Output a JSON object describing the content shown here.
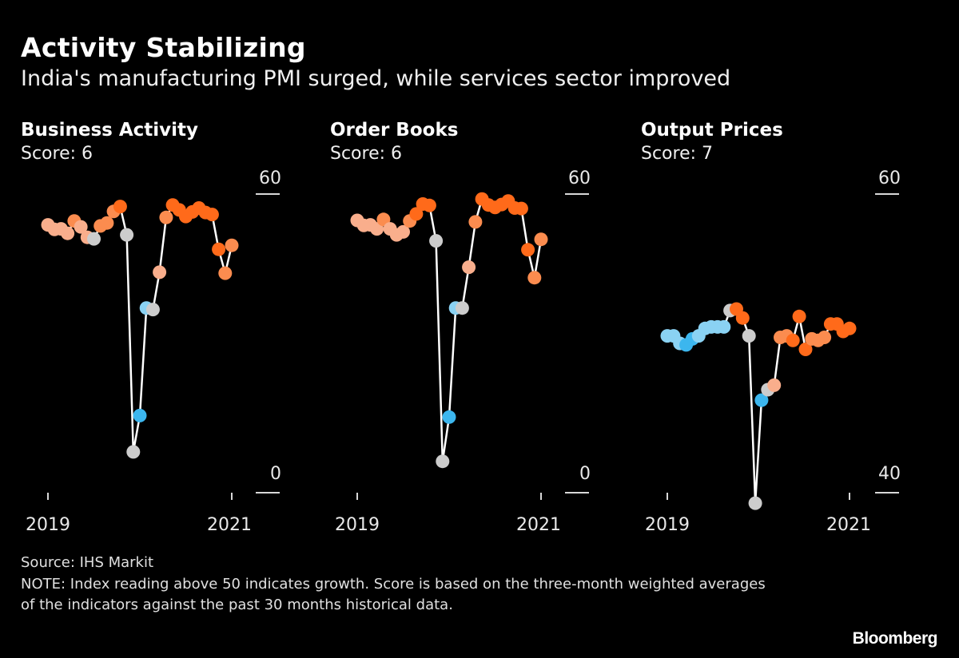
{
  "header": {
    "title": "Activity Stabilizing",
    "subtitle": "India's manufacturing PMI surged, while services sector improved"
  },
  "footer": {
    "source": "Source: IHS Markit",
    "note": "NOTE: Index reading above 50 indicates growth. Score is based on the three-month weighted averages of the indicators against the past 30 months historical data.",
    "brand": "Bloomberg"
  },
  "colors": {
    "background": "#000000",
    "line": "#ffffff",
    "neutral": "#cccccc",
    "light_orange": "#f9ae8c",
    "mid_orange": "#fb8c4f",
    "orange": "#ff6a1a",
    "light_blue": "#8ad2f3",
    "blue": "#3cb6ee"
  },
  "panels": [
    {
      "title": "Business Activity",
      "score": "Score: 6"
    },
    {
      "title": "Order Books",
      "score": "Score: 6"
    },
    {
      "title": "Output Prices",
      "score": "Score: 7"
    }
  ],
  "chart_data": [
    {
      "type": "line",
      "title": "Business Activity",
      "subtitle": "Score: 6",
      "x_ticks": [
        "2019",
        "2021"
      ],
      "ylim": [
        0,
        60
      ],
      "y_ticks": [
        "0",
        "60"
      ],
      "color_key": [
        "neutral",
        "light_orange",
        "mid_orange",
        "orange",
        "light_blue",
        "blue"
      ],
      "series": [
        {
          "name": "Business Activity",
          "values": [
            53.8,
            52.9,
            53.0,
            52.1,
            54.6,
            53.4,
            51.3,
            51.0,
            53.6,
            54.2,
            56.5,
            57.5,
            51.8,
            8.2,
            15.5,
            37.1,
            36.8,
            44.3,
            55.3,
            57.8,
            56.8,
            55.5,
            56.4,
            57.2,
            56.3,
            55.9,
            48.9,
            44.1,
            49.7
          ],
          "colors": [
            "light_orange",
            "light_orange",
            "light_orange",
            "light_orange",
            "mid_orange",
            "light_orange",
            "light_orange",
            "neutral",
            "mid_orange",
            "mid_orange",
            "mid_orange",
            "orange",
            "neutral",
            "neutral",
            "blue",
            "light_blue",
            "neutral",
            "light_orange",
            "mid_orange",
            "orange",
            "orange",
            "orange",
            "orange",
            "orange",
            "orange",
            "orange",
            "orange",
            "mid_orange",
            "mid_orange"
          ]
        }
      ]
    },
    {
      "type": "line",
      "title": "Order Books",
      "subtitle": "Score: 6",
      "x_ticks": [
        "2019",
        "2021"
      ],
      "ylim": [
        0,
        60
      ],
      "y_ticks": [
        "0",
        "60"
      ],
      "color_key": [
        "neutral",
        "light_orange",
        "mid_orange",
        "orange",
        "light_blue",
        "blue"
      ],
      "series": [
        {
          "name": "Order Books",
          "values": [
            54.7,
            53.7,
            53.8,
            53.0,
            54.9,
            53.0,
            51.8,
            52.4,
            54.6,
            56.0,
            58.0,
            57.7,
            50.6,
            6.3,
            15.2,
            37.1,
            37.1,
            45.3,
            54.4,
            59.0,
            57.8,
            57.3,
            57.9,
            58.6,
            57.2,
            57.1,
            48.8,
            43.2,
            50.9
          ],
          "colors": [
            "light_orange",
            "light_orange",
            "light_orange",
            "light_orange",
            "mid_orange",
            "light_orange",
            "light_orange",
            "light_orange",
            "mid_orange",
            "orange",
            "orange",
            "orange",
            "neutral",
            "neutral",
            "blue",
            "light_blue",
            "neutral",
            "light_orange",
            "mid_orange",
            "orange",
            "orange",
            "orange",
            "orange",
            "orange",
            "orange",
            "orange",
            "orange",
            "mid_orange",
            "mid_orange"
          ]
        }
      ]
    },
    {
      "type": "line",
      "title": "Output Prices",
      "subtitle": "Score: 7",
      "x_ticks": [
        "2019",
        "2021"
      ],
      "ylim": [
        40,
        60
      ],
      "y_ticks": [
        "40",
        "60"
      ],
      "color_key": [
        "neutral",
        "light_orange",
        "mid_orange",
        "orange",
        "light_blue",
        "blue"
      ],
      "series": [
        {
          "name": "Output Prices",
          "values": [
            50.5,
            50.5,
            50.0,
            49.9,
            50.3,
            50.5,
            51.0,
            51.1,
            51.1,
            51.1,
            52.2,
            52.3,
            51.7,
            50.5,
            39.3,
            46.2,
            46.9,
            47.2,
            50.4,
            50.5,
            50.2,
            51.8,
            49.6,
            50.3,
            50.2,
            50.4,
            51.3,
            51.3,
            50.8,
            51.0
          ],
          "colors": [
            "light_blue",
            "light_blue",
            "light_blue",
            "blue",
            "blue",
            "light_blue",
            "light_blue",
            "light_blue",
            "light_blue",
            "light_blue",
            "neutral",
            "orange",
            "orange",
            "neutral",
            "neutral",
            "blue",
            "neutral",
            "light_orange",
            "mid_orange",
            "mid_orange",
            "orange",
            "orange",
            "orange",
            "mid_orange",
            "mid_orange",
            "mid_orange",
            "orange",
            "orange",
            "orange",
            "orange"
          ]
        }
      ]
    }
  ]
}
